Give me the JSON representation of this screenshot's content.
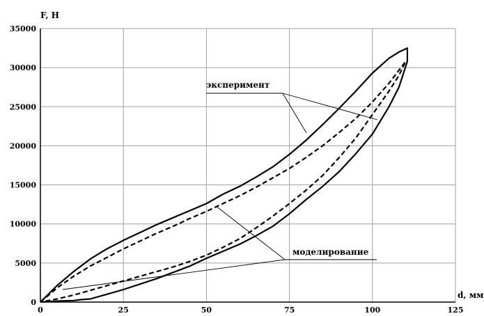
{
  "chart_data": {
    "type": "line",
    "ylabel": "F, Н",
    "xlabel": "d, мм",
    "xlim": [
      0,
      125
    ],
    "ylim": [
      0,
      35000
    ],
    "x_ticks": [
      0,
      25,
      50,
      75,
      100,
      125
    ],
    "y_ticks": [
      0,
      5000,
      10000,
      15000,
      20000,
      25000,
      30000,
      35000
    ],
    "grid": true,
    "series": [
      {
        "style": "solid",
        "x": [
          0,
          5,
          10,
          15,
          20,
          25,
          30,
          35,
          40,
          45,
          50,
          55,
          60,
          65,
          70,
          75,
          80,
          85,
          90,
          95,
          100,
          105,
          108,
          110.5,
          110.5,
          108,
          105,
          100,
          95,
          90,
          85,
          80,
          75,
          70,
          65,
          60,
          55,
          50,
          45,
          40,
          35,
          30,
          25,
          20,
          15,
          12,
          10,
          6,
          3,
          0
        ],
        "y": [
          0,
          2100,
          3900,
          5500,
          6800,
          7900,
          8900,
          9900,
          10800,
          11700,
          12600,
          13800,
          14800,
          16000,
          17300,
          18900,
          20700,
          22700,
          24800,
          27000,
          29300,
          31200,
          32000,
          32500,
          30800,
          27500,
          25000,
          21500,
          19000,
          16700,
          14800,
          13100,
          11300,
          9700,
          8500,
          7400,
          6500,
          5600,
          4600,
          3800,
          3000,
          2300,
          1600,
          1000,
          400,
          300,
          200,
          150,
          80,
          0
        ]
      },
      {
        "style": "dashed",
        "x": [
          0,
          5,
          10,
          15,
          20,
          25,
          30,
          35,
          40,
          45,
          50,
          55,
          60,
          65,
          70,
          75,
          80,
          85,
          90,
          95,
          100,
          105,
          110,
          108,
          105,
          100,
          95,
          90,
          85,
          80,
          75,
          70,
          65,
          60,
          55,
          50,
          45,
          40,
          35,
          30,
          25,
          20,
          15,
          10,
          5,
          0
        ],
        "y": [
          0,
          1800,
          3300,
          4600,
          5700,
          6800,
          7800,
          8800,
          9700,
          10700,
          11600,
          12600,
          13600,
          14700,
          15900,
          17100,
          18500,
          20000,
          21700,
          23500,
          25600,
          28000,
          30800,
          29000,
          27000,
          24000,
          21000,
          18500,
          16200,
          14300,
          12600,
          11000,
          9500,
          8100,
          7000,
          6000,
          5200,
          4500,
          3900,
          3300,
          2700,
          2100,
          1500,
          900,
          400,
          0
        ]
      }
    ],
    "annotations": [
      {
        "text": "эксперимент"
      },
      {
        "text": "моделирование"
      }
    ]
  }
}
